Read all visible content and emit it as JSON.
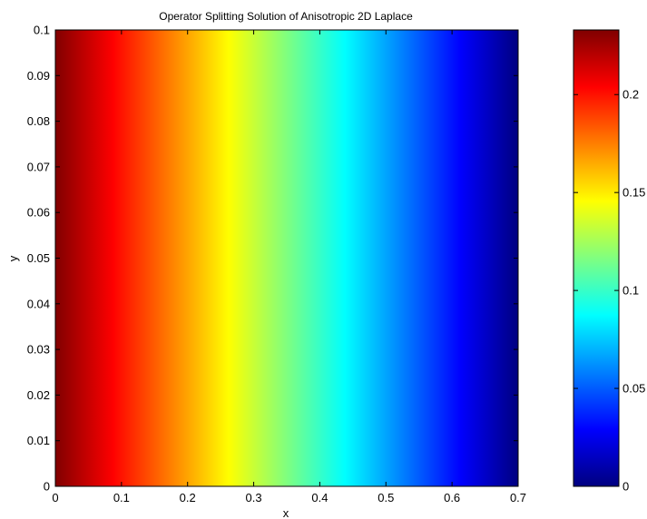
{
  "chart_data": {
    "type": "heatmap",
    "title": "Operator Splitting Solution of Anisotropic 2D Laplace",
    "xlabel": "x",
    "ylabel": "y",
    "xlim": [
      0,
      0.7
    ],
    "ylim": [
      0,
      0.1
    ],
    "x_ticks": [
      "0",
      "0.1",
      "0.2",
      "0.3",
      "0.4",
      "0.5",
      "0.6",
      "0.7"
    ],
    "y_ticks": [
      "0",
      "0.01",
      "0.02",
      "0.03",
      "0.04",
      "0.05",
      "0.06",
      "0.07",
      "0.08",
      "0.09",
      "0.1"
    ],
    "colorbar": {
      "colormap": "jet",
      "clim": [
        0,
        0.233
      ],
      "ticks": [
        "0",
        "0.05",
        "0.1",
        "0.15",
        "0.2"
      ]
    },
    "field": {
      "description_of_variation": "value varies along x only",
      "x": [
        0,
        0.1,
        0.2,
        0.3,
        0.4,
        0.5,
        0.6,
        0.7
      ],
      "values": [
        0.233,
        0.2,
        0.167,
        0.133,
        0.1,
        0.067,
        0.033,
        0
      ]
    }
  }
}
